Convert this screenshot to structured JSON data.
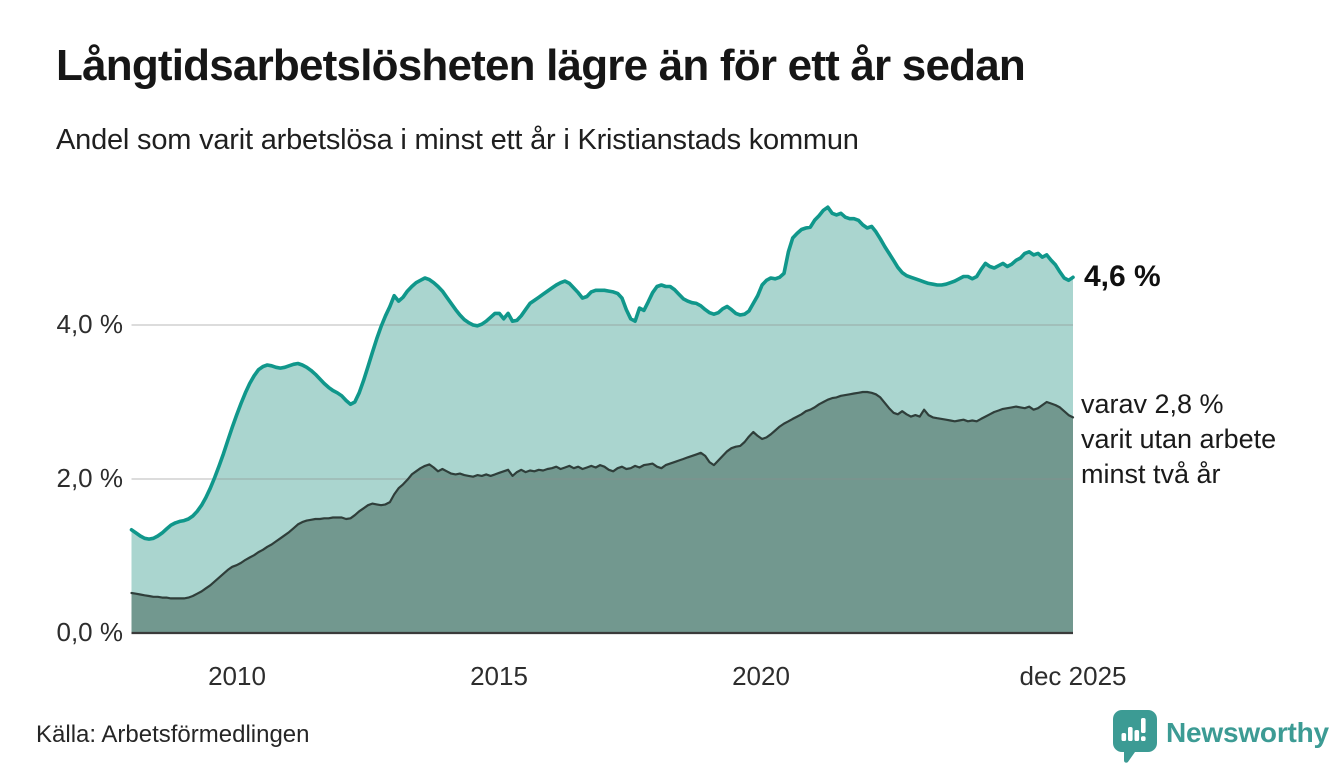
{
  "header": {
    "title": "Långtidsarbetslösheten lägre än för ett år sedan",
    "subtitle": "Andel som varit arbetslösa i minst ett år i Kristianstads kommun"
  },
  "annotations": {
    "latest_total_label": "4,6 %",
    "secondary_lines": [
      "varav 2,8 %",
      "varit utan arbete",
      "minst två år"
    ]
  },
  "footer": {
    "source": "Källa: Arbetsförmedlingen",
    "brand": "Newsworthy"
  },
  "colors": {
    "total_line": "#10978b",
    "total_fill": "#aad5cf",
    "two_year_line": "#2f3e3a",
    "two_year_fill": "#72988f",
    "gridline": "rgba(140,140,140,0.4)",
    "axis_line": "#3a3a3a",
    "brand_teal": "#3c9b94"
  },
  "chart_data": {
    "type": "area",
    "unit": "%",
    "frequency": "monthly",
    "x_start": "2008-01",
    "x_end": "2025-12",
    "ylim": [
      0,
      5.9
    ],
    "grid": "horizontal",
    "legend_position": "right-annotations",
    "y_ticks": [
      {
        "value": 0,
        "label": "0,0 %"
      },
      {
        "value": 2,
        "label": "2,0 %"
      },
      {
        "value": 4,
        "label": "4,0 %"
      }
    ],
    "x_ticks": [
      {
        "index": 24,
        "label": "2010"
      },
      {
        "index": 84,
        "label": "2015"
      },
      {
        "index": 144,
        "label": "2020"
      },
      {
        "index": 215,
        "label": "dec 2025"
      }
    ],
    "series": [
      {
        "name": "Arbetslösa minst ett år",
        "latest_value": 4.6,
        "line_color": "#10978b",
        "fill_color": "#aad5cf",
        "line_width": 3.6,
        "values": [
          1.34,
          1.3,
          1.26,
          1.23,
          1.22,
          1.23,
          1.26,
          1.3,
          1.35,
          1.4,
          1.43,
          1.45,
          1.46,
          1.48,
          1.52,
          1.58,
          1.66,
          1.76,
          1.88,
          2.02,
          2.17,
          2.33,
          2.5,
          2.67,
          2.83,
          2.98,
          3.12,
          3.24,
          3.34,
          3.42,
          3.46,
          3.48,
          3.47,
          3.45,
          3.44,
          3.45,
          3.47,
          3.49,
          3.5,
          3.48,
          3.45,
          3.41,
          3.36,
          3.3,
          3.24,
          3.19,
          3.15,
          3.12,
          3.08,
          3.02,
          2.97,
          3.0,
          3.12,
          3.28,
          3.46,
          3.64,
          3.82,
          3.98,
          4.12,
          4.24,
          4.38,
          4.31,
          4.36,
          4.44,
          4.5,
          4.55,
          4.58,
          4.61,
          4.59,
          4.55,
          4.5,
          4.44,
          4.36,
          4.28,
          4.2,
          4.13,
          4.07,
          4.03,
          4.0,
          3.99,
          4.01,
          4.05,
          4.1,
          4.15,
          4.15,
          4.08,
          4.15,
          4.05,
          4.06,
          4.12,
          4.2,
          4.28,
          4.32,
          4.36,
          4.4,
          4.44,
          4.48,
          4.52,
          4.55,
          4.57,
          4.54,
          4.48,
          4.42,
          4.35,
          4.37,
          4.43,
          4.45,
          4.45,
          4.45,
          4.44,
          4.43,
          4.41,
          4.35,
          4.2,
          4.08,
          4.05,
          4.22,
          4.19,
          4.3,
          4.42,
          4.5,
          4.52,
          4.5,
          4.5,
          4.46,
          4.4,
          4.34,
          4.31,
          4.29,
          4.28,
          4.25,
          4.2,
          4.16,
          4.14,
          4.16,
          4.21,
          4.24,
          4.2,
          4.15,
          4.13,
          4.14,
          4.18,
          4.28,
          4.38,
          4.52,
          4.58,
          4.61,
          4.6,
          4.62,
          4.67,
          4.95,
          5.13,
          5.19,
          5.24,
          5.26,
          5.27,
          5.36,
          5.42,
          5.49,
          5.53,
          5.45,
          5.43,
          5.45,
          5.4,
          5.38,
          5.38,
          5.36,
          5.3,
          5.26,
          5.28,
          5.21,
          5.12,
          5.02,
          4.93,
          4.84,
          4.75,
          4.68,
          4.64,
          4.62,
          4.6,
          4.58,
          4.56,
          4.54,
          4.53,
          4.52,
          4.52,
          4.53,
          4.55,
          4.57,
          4.6,
          4.63,
          4.63,
          4.6,
          4.63,
          4.72,
          4.8,
          4.76,
          4.74,
          4.77,
          4.8,
          4.76,
          4.79,
          4.84,
          4.87,
          4.93,
          4.95,
          4.91,
          4.93,
          4.88,
          4.91,
          4.84,
          4.78,
          4.69,
          4.61,
          4.58,
          4.62
        ]
      },
      {
        "name": "varav arbetslösa minst två år",
        "latest_value": 2.8,
        "line_color": "#2f3e3a",
        "fill_color": "#72988f",
        "line_width": 2.2,
        "values": [
          0.52,
          0.51,
          0.5,
          0.49,
          0.48,
          0.47,
          0.47,
          0.46,
          0.46,
          0.45,
          0.45,
          0.45,
          0.45,
          0.46,
          0.48,
          0.51,
          0.54,
          0.58,
          0.62,
          0.67,
          0.72,
          0.77,
          0.82,
          0.86,
          0.88,
          0.91,
          0.95,
          0.98,
          1.01,
          1.05,
          1.08,
          1.12,
          1.15,
          1.19,
          1.23,
          1.27,
          1.31,
          1.36,
          1.41,
          1.44,
          1.46,
          1.47,
          1.48,
          1.48,
          1.49,
          1.49,
          1.5,
          1.5,
          1.5,
          1.48,
          1.49,
          1.53,
          1.58,
          1.62,
          1.66,
          1.68,
          1.67,
          1.66,
          1.67,
          1.7,
          1.8,
          1.88,
          1.93,
          1.99,
          2.06,
          2.1,
          2.14,
          2.17,
          2.19,
          2.15,
          2.1,
          2.13,
          2.1,
          2.07,
          2.06,
          2.07,
          2.05,
          2.04,
          2.03,
          2.05,
          2.04,
          2.06,
          2.04,
          2.06,
          2.08,
          2.1,
          2.12,
          2.04,
          2.09,
          2.12,
          2.09,
          2.11,
          2.1,
          2.12,
          2.11,
          2.13,
          2.14,
          2.16,
          2.13,
          2.15,
          2.17,
          2.14,
          2.16,
          2.13,
          2.15,
          2.17,
          2.15,
          2.18,
          2.16,
          2.12,
          2.1,
          2.14,
          2.16,
          2.13,
          2.14,
          2.17,
          2.15,
          2.18,
          2.19,
          2.2,
          2.16,
          2.14,
          2.18,
          2.2,
          2.22,
          2.24,
          2.26,
          2.28,
          2.3,
          2.32,
          2.34,
          2.3,
          2.22,
          2.18,
          2.24,
          2.3,
          2.36,
          2.4,
          2.42,
          2.43,
          2.48,
          2.55,
          2.61,
          2.56,
          2.52,
          2.54,
          2.58,
          2.63,
          2.68,
          2.72,
          2.75,
          2.78,
          2.81,
          2.84,
          2.88,
          2.9,
          2.93,
          2.97,
          3.0,
          3.03,
          3.05,
          3.06,
          3.08,
          3.09,
          3.1,
          3.11,
          3.12,
          3.13,
          3.13,
          3.12,
          3.1,
          3.06,
          2.99,
          2.92,
          2.86,
          2.84,
          2.88,
          2.84,
          2.81,
          2.83,
          2.81,
          2.9,
          2.83,
          2.8,
          2.79,
          2.78,
          2.77,
          2.76,
          2.75,
          2.76,
          2.77,
          2.75,
          2.76,
          2.75,
          2.78,
          2.81,
          2.84,
          2.87,
          2.89,
          2.91,
          2.92,
          2.93,
          2.94,
          2.93,
          2.92,
          2.94,
          2.9,
          2.92,
          2.96,
          3.0,
          2.98,
          2.96,
          2.93,
          2.88,
          2.83,
          2.8
        ]
      }
    ]
  }
}
